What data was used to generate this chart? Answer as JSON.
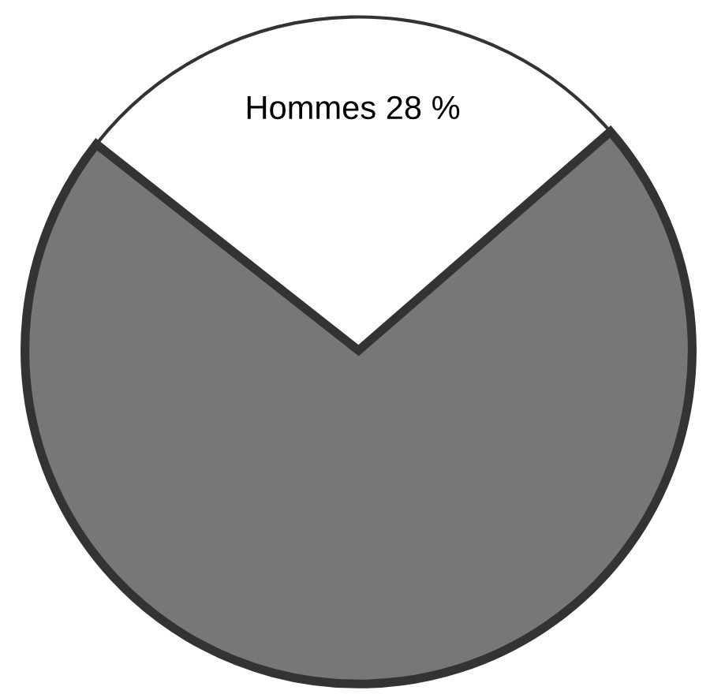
{
  "chart_data": {
    "type": "pie",
    "categories": [
      "Hommes",
      null
    ],
    "values": [
      28,
      72
    ],
    "value_labels": [
      "28 %",
      null
    ],
    "colors": [
      "#ffffff",
      "#777777"
    ]
  }
}
